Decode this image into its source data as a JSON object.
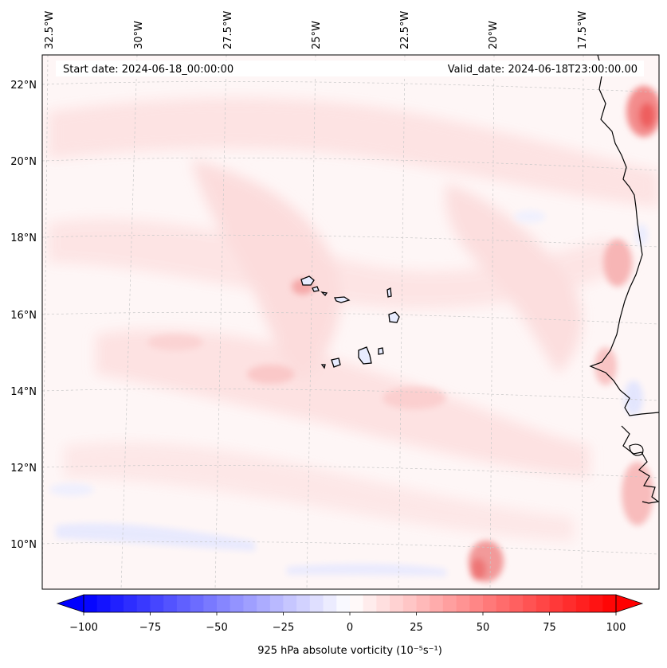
{
  "header": {
    "start_date": "Start date: 2024-06-18_00:00:00",
    "valid_date": "Valid_date: 2024-06-18T23:00:00.00"
  },
  "map": {
    "longitude_labels": [
      "32.5°W",
      "30°W",
      "27.5°W",
      "25°W",
      "22.5°W",
      "20°W",
      "17.5°W"
    ],
    "latitude_labels": [
      "22°N",
      "20°N",
      "18°N",
      "16°N",
      "14°N",
      "12°N",
      "10°N"
    ],
    "gridlines": true,
    "coastline_color": "#000000",
    "field_colors": {
      "light_positive": "#fde3e3",
      "positive": "#f9b6b6",
      "strong_positive": "#f26a6a",
      "light_negative": "#eef0ff"
    }
  },
  "colorbar": {
    "label": "925 hPa absolute vorticity (10⁻⁵s⁻¹)",
    "ticks": [
      "−100",
      "−75",
      "−50",
      "−25",
      "0",
      "25",
      "50",
      "75",
      "100"
    ],
    "vmin": -100,
    "vmax": 100,
    "colormap": "bwr",
    "color_min": "#0000ff",
    "color_mid": "#ffffff",
    "color_max": "#ff0000"
  }
}
